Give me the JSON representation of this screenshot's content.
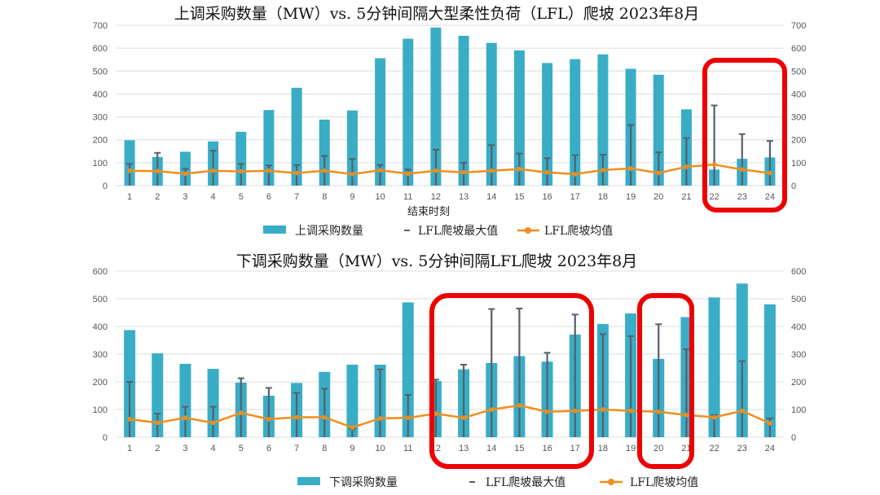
{
  "colors": {
    "bar": "#39adc6",
    "err": "#55606b",
    "avg": "#f28d1b",
    "highlight": "#ee0000"
  },
  "chart_data": [
    {
      "type": "bar",
      "title": "上调采购数量（MW）vs. 5分钟间隔大型柔性负荷（LFL）爬坡 2023年8月",
      "xlabel": "结束时刻",
      "categories": [
        "1",
        "2",
        "3",
        "4",
        "5",
        "6",
        "7",
        "8",
        "9",
        "10",
        "11",
        "12",
        "13",
        "14",
        "15",
        "16",
        "17",
        "18",
        "19",
        "20",
        "21",
        "22",
        "23",
        "24"
      ],
      "ylim": [
        0,
        700
      ],
      "yticks": [
        0,
        100,
        200,
        300,
        400,
        500,
        600,
        700
      ],
      "y2lim": [
        0,
        700
      ],
      "series": [
        {
          "name": "上调采购数量",
          "kind": "bar",
          "values": [
            198,
            125,
            148,
            193,
            235,
            330,
            427,
            288,
            328,
            556,
            641,
            690,
            654,
            623,
            590,
            535,
            552,
            573,
            510,
            484,
            333,
            70,
            117,
            123
          ]
        },
        {
          "name": "LFL爬坡最大值",
          "kind": "errorbar",
          "values": [
            95,
            143,
            73,
            152,
            95,
            88,
            90,
            130,
            117,
            90,
            70,
            157,
            100,
            177,
            140,
            120,
            133,
            135,
            265,
            145,
            208,
            350,
            225,
            195
          ]
        },
        {
          "name": "LFL爬坡均值",
          "kind": "line",
          "values": [
            65,
            63,
            52,
            65,
            62,
            65,
            55,
            65,
            50,
            67,
            52,
            65,
            58,
            65,
            72,
            58,
            50,
            68,
            75,
            55,
            82,
            92,
            70,
            55
          ]
        }
      ],
      "legend": "bottom",
      "highlighted_categories": [
        "22",
        "23",
        "24"
      ]
    },
    {
      "type": "bar",
      "title": "下调采购数量（MW）vs. 5分钟间隔LFL爬坡 2023年8月",
      "xlabel": "",
      "categories": [
        "1",
        "2",
        "3",
        "4",
        "5",
        "6",
        "7",
        "8",
        "9",
        "10",
        "11",
        "12",
        "13",
        "14",
        "15",
        "16",
        "17",
        "18",
        "19",
        "20",
        "21",
        "22",
        "23",
        "24"
      ],
      "ylim": [
        0,
        600
      ],
      "yticks": [
        0,
        100,
        200,
        300,
        400,
        500,
        600
      ],
      "y2lim": [
        0,
        600
      ],
      "series": [
        {
          "name": "下调采购数量",
          "kind": "bar",
          "values": [
            387,
            303,
            265,
            247,
            197,
            150,
            196,
            236,
            262,
            262,
            487,
            203,
            245,
            268,
            293,
            273,
            371,
            409,
            447,
            283,
            434,
            505,
            555,
            480
          ]
        },
        {
          "name": "LFL爬坡最大值",
          "kind": "errorbar",
          "values": [
            200,
            85,
            110,
            110,
            213,
            178,
            160,
            175,
            30,
            245,
            153,
            208,
            262,
            463,
            465,
            305,
            443,
            372,
            365,
            408,
            318,
            80,
            275,
            68
          ]
        },
        {
          "name": "LFL爬坡均值",
          "kind": "line",
          "values": [
            65,
            52,
            70,
            52,
            88,
            65,
            72,
            72,
            35,
            68,
            70,
            85,
            70,
            100,
            115,
            92,
            95,
            100,
            95,
            92,
            80,
            72,
            95,
            50
          ]
        }
      ],
      "legend": "bottom",
      "highlighted_categories": [
        "12",
        "13",
        "14",
        "15",
        "16",
        "17",
        "20"
      ]
    }
  ]
}
